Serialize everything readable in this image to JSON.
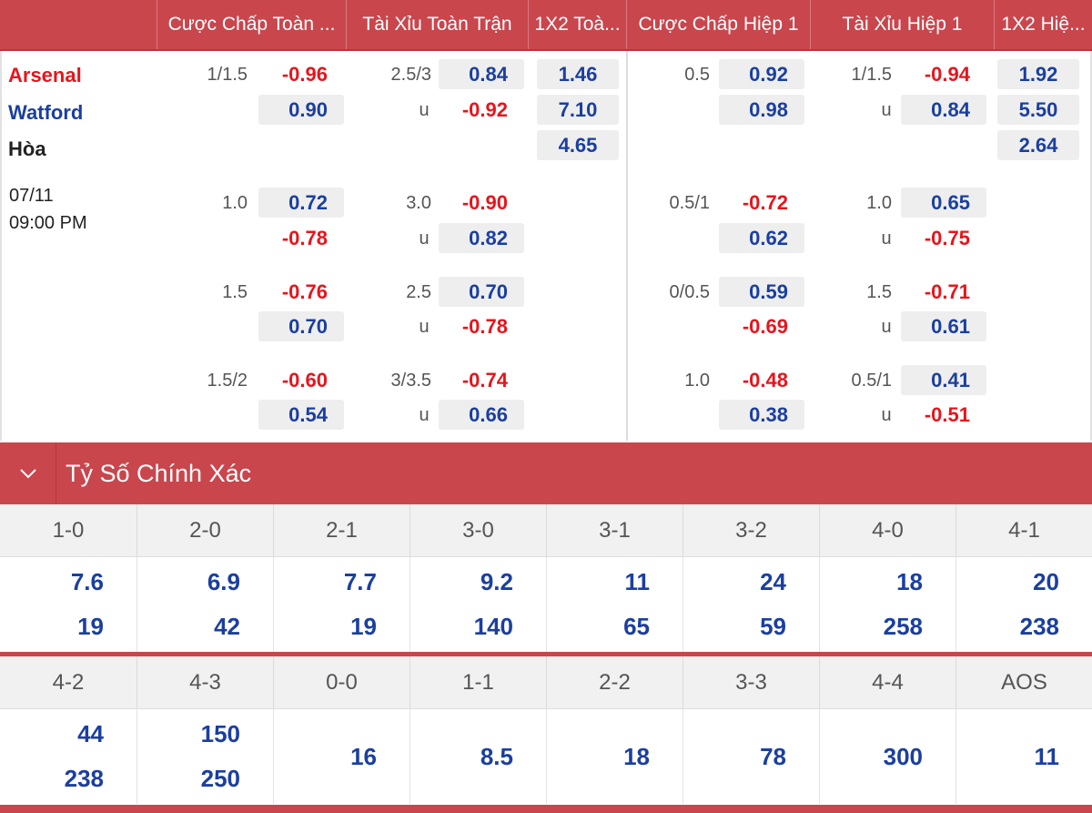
{
  "headers": [
    "Cược Chấp Toàn ...",
    "Tài Xỉu Toàn Trận",
    "1X2 Toà...",
    "Cược Chấp Hiệp 1",
    "Tài Xỉu Hiệp 1",
    "1X2 Hiệ..."
  ],
  "match": {
    "home": "Arsenal",
    "away": "Watford",
    "draw": "Hòa",
    "date": "07/11",
    "time": "09:00 PM"
  },
  "over_under_label": "u",
  "rows": [
    {
      "ah_line": "1/1.5",
      "ah_home": "-0.96",
      "ah_away": "0.90",
      "ou_line": "2.5/3",
      "ou_over": "0.84",
      "ou_under": "-0.92",
      "x12_home": "1.46",
      "x12_away": "7.10",
      "x12_draw": "4.65",
      "h1_ah_line": "0.5",
      "h1_ah_home": "0.92",
      "h1_ah_away": "0.98",
      "h1_ou_line": "1/1.5",
      "h1_ou_over": "-0.94",
      "h1_ou_under": "0.84",
      "h1_x12_home": "1.92",
      "h1_x12_away": "5.50",
      "h1_x12_draw": "2.64"
    },
    {
      "ah_line": "1.0",
      "ah_home": "0.72",
      "ah_away": "-0.78",
      "ou_line": "3.0",
      "ou_over": "-0.90",
      "ou_under": "0.82",
      "h1_ah_line": "0.5/1",
      "h1_ah_home": "-0.72",
      "h1_ah_away": "0.62",
      "h1_ou_line": "1.0",
      "h1_ou_over": "0.65",
      "h1_ou_under": "-0.75"
    },
    {
      "ah_line": "1.5",
      "ah_home": "-0.76",
      "ah_away": "0.70",
      "ou_line": "2.5",
      "ou_over": "0.70",
      "ou_under": "-0.78",
      "h1_ah_line": "0/0.5",
      "h1_ah_home": "0.59",
      "h1_ah_away": "-0.69",
      "h1_ou_line": "1.5",
      "h1_ou_over": "-0.71",
      "h1_ou_under": "0.61"
    },
    {
      "ah_line": "1.5/2",
      "ah_home": "-0.60",
      "ah_away": "0.54",
      "ou_line": "3/3.5",
      "ou_over": "-0.74",
      "ou_under": "0.66",
      "h1_ah_line": "1.0",
      "h1_ah_home": "-0.48",
      "h1_ah_away": "0.38",
      "h1_ou_line": "0.5/1",
      "h1_ou_over": "0.41",
      "h1_ou_under": "-0.51"
    }
  ],
  "correct_score": {
    "title": "Tỷ Số Chính Xác",
    "toggle_icon": "chevron-down-icon",
    "row1": {
      "scores": [
        "1-0",
        "2-0",
        "2-1",
        "3-0",
        "3-1",
        "3-2",
        "4-0",
        "4-1"
      ],
      "home": [
        "7.6",
        "6.9",
        "7.7",
        "9.2",
        "11",
        "24",
        "18",
        "20"
      ],
      "away": [
        "19",
        "42",
        "19",
        "140",
        "65",
        "59",
        "258",
        "238"
      ]
    },
    "row2": {
      "scores": [
        "4-2",
        "4-3",
        "0-0",
        "1-1",
        "2-2",
        "3-3",
        "4-4",
        "AOS"
      ],
      "home": [
        "44",
        "150",
        "16",
        "8.5",
        "18",
        "78",
        "300",
        "11"
      ],
      "away": [
        "238",
        "250",
        "",
        "",
        "",
        "",
        "",
        ""
      ]
    }
  },
  "colors": {
    "accent": "#c9464d",
    "positive": "#1b3fa0",
    "negative": "#e8141c"
  }
}
